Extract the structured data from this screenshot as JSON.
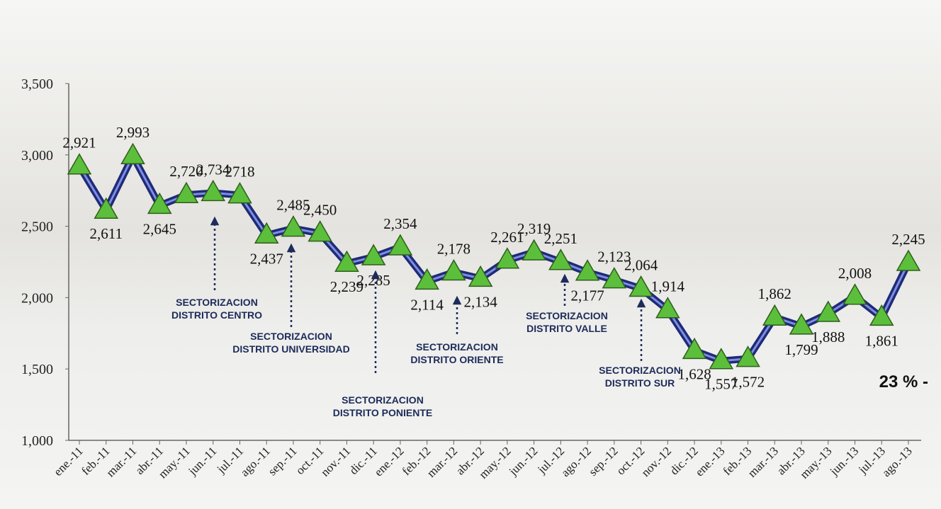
{
  "chart_data": {
    "type": "line",
    "categories": [
      "ene.-11",
      "feb.-11",
      "mar.-11",
      "abr.-11",
      "may.-11",
      "jun.-11",
      "jul.-11",
      "ago.-11",
      "sep.-11",
      "oct.-11",
      "nov.-11",
      "dic.-11",
      "ene.-12",
      "feb.-12",
      "mar.-12",
      "abr.-12",
      "may.-12",
      "jun.-12",
      "jul.-12",
      "ago.-12",
      "sep.-12",
      "oct.-12",
      "nov.-12",
      "dic.-12",
      "ene.-13",
      "feb.-13",
      "mar.-13",
      "abr.-13",
      "may.-13",
      "jun.-13",
      "jul.-13",
      "ago.-13"
    ],
    "series": [
      {
        "color": "#1f2a78",
        "marker_color": "#5cbf3c",
        "values": [
          2921,
          2611,
          2993,
          2645,
          2720,
          2734,
          2718,
          2437,
          2485,
          2450,
          2239,
          2285,
          2354,
          2114,
          2178,
          2134,
          2261,
          2319,
          2251,
          2177,
          2123,
          2064,
          1914,
          1628,
          1557,
          1572,
          1862,
          1799,
          1888,
          2008,
          1861,
          2245
        ],
        "value_labels": [
          "2,921",
          "2,611",
          "2,993",
          "2,645",
          "2,720",
          "2,734",
          "2718",
          "2,437",
          "2,485",
          "2,450",
          "2,239",
          "2,285",
          "2,354",
          "2,114",
          "2,178",
          "2,134",
          "2,261",
          "2,319",
          "2,251",
          "2,177",
          "2,123",
          "2,064",
          "1,914",
          "1,628",
          "1,557",
          "1,572",
          "1,862",
          "1,799",
          "1,888",
          "2,008",
          "1,861",
          "2,245"
        ]
      }
    ],
    "ylim": [
      1000,
      3500
    ],
    "yticks": [
      {
        "value": 1000,
        "label": "1,000"
      },
      {
        "value": 1500,
        "label": "1,500"
      },
      {
        "value": 2000,
        "label": "2,000"
      },
      {
        "value": 2500,
        "label": "2,500"
      },
      {
        "value": 3000,
        "label": "3,000"
      },
      {
        "value": 3500,
        "label": "3,500"
      }
    ],
    "annotations": [
      {
        "lines": [
          "SECTORIZACION",
          "DISTRITO CENTRO"
        ]
      },
      {
        "lines": [
          "SECTORIZACION",
          "DISTRITO UNIVERSIDAD"
        ]
      },
      {
        "lines": [
          "SECTORIZACION",
          "DISTRITO PONIENTE"
        ]
      },
      {
        "lines": [
          "SECTORIZACION",
          "DISTRITO ORIENTE"
        ]
      },
      {
        "lines": [
          "SECTORIZACION",
          "DISTRITO VALLE"
        ]
      },
      {
        "lines": [
          "SECTORIZACION",
          "DISTRITO SUR"
        ]
      }
    ],
    "note": "23 % -"
  }
}
